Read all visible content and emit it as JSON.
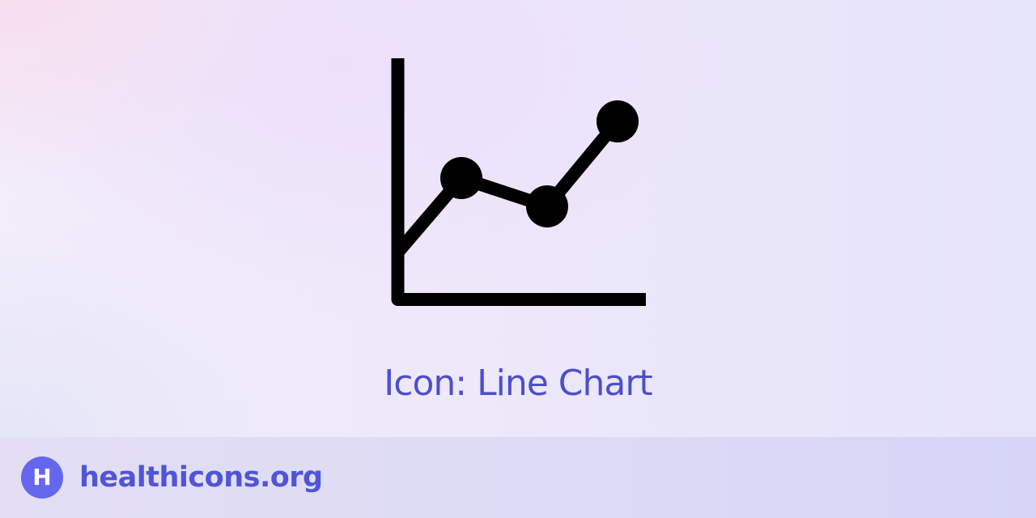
{
  "icon": {
    "name": "line-chart-icon",
    "color": "#000000"
  },
  "caption": {
    "text": "Icon: Line Chart",
    "color": "#4c4fcb"
  },
  "footer": {
    "logo_glyph": "H",
    "logo_color": "#6467ee",
    "site_name": "healthicons.org",
    "site_color": "#5055d6"
  }
}
